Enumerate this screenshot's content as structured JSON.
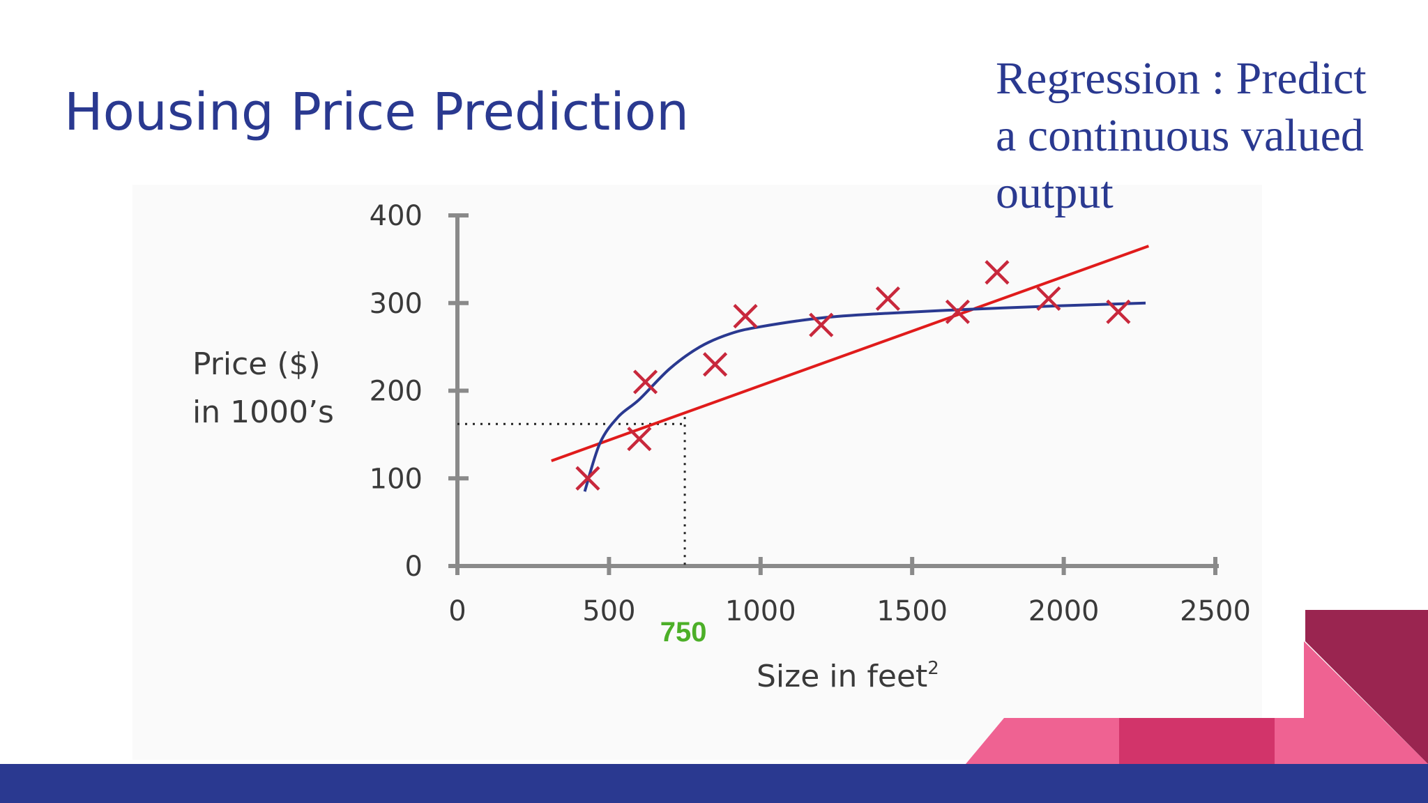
{
  "slide": {
    "title": "Housing Price Prediction",
    "note_lines": [
      "Regression : Predict",
      "a continuous valued",
      "output"
    ]
  },
  "colors": {
    "title": "#2a3990",
    "footer": "#2a3990",
    "linear_fit": "#e01b1b",
    "curve_fit": "#2a3990",
    "markers": "#c8283c",
    "highlight": "#4caf28",
    "accent_pink": "#ef6292",
    "accent_rose": "#d2346a",
    "accent_maroon": "#9a2550"
  },
  "chart_data": {
    "type": "scatter",
    "title": "",
    "xlabel": "Size in feet",
    "xlabel_superscript": "2",
    "ylabel_lines": [
      "Price ($)",
      "in 1000’s"
    ],
    "xlim": [
      0,
      2500
    ],
    "ylim": [
      0,
      400
    ],
    "x_ticks": [
      0,
      500,
      1000,
      1500,
      2000,
      2500
    ],
    "y_ticks": [
      0,
      100,
      200,
      300,
      400
    ],
    "points": [
      {
        "x": 430,
        "y": 100
      },
      {
        "x": 600,
        "y": 145
      },
      {
        "x": 620,
        "y": 210
      },
      {
        "x": 850,
        "y": 230
      },
      {
        "x": 950,
        "y": 285
      },
      {
        "x": 1200,
        "y": 275
      },
      {
        "x": 1420,
        "y": 305
      },
      {
        "x": 1650,
        "y": 290
      },
      {
        "x": 1780,
        "y": 335
      },
      {
        "x": 1950,
        "y": 305
      },
      {
        "x": 2180,
        "y": 290
      }
    ],
    "linear_fit": {
      "x": [
        310,
        2280
      ],
      "y": [
        120,
        365
      ]
    },
    "curve_fit": {
      "x": [
        420,
        470,
        530,
        600,
        700,
        800,
        900,
        1000,
        1200,
        1400,
        1700,
        2000,
        2270
      ],
      "y": [
        85,
        140,
        170,
        190,
        225,
        250,
        265,
        273,
        283,
        288,
        293,
        297,
        300
      ]
    },
    "prediction": {
      "x": 750,
      "y": 170,
      "label": "750"
    }
  }
}
